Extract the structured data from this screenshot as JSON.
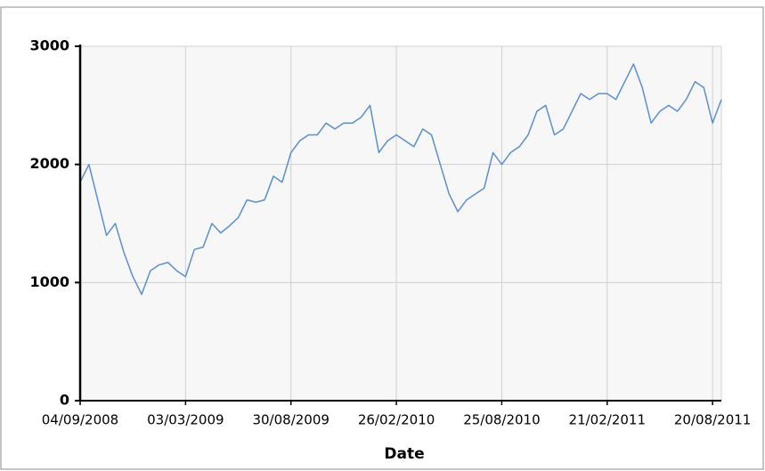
{
  "chart_data": {
    "type": "line",
    "x_label": "Date",
    "x": [
      "2008-09-04",
      "2008-09-19",
      "2008-10-04",
      "2008-10-19",
      "2008-11-03",
      "2008-11-18",
      "2008-12-03",
      "2008-12-18",
      "2009-01-02",
      "2009-01-17",
      "2009-02-01",
      "2009-02-16",
      "2009-03-03",
      "2009-03-18",
      "2009-04-02",
      "2009-04-17",
      "2009-05-02",
      "2009-05-17",
      "2009-06-01",
      "2009-06-16",
      "2009-07-01",
      "2009-07-16",
      "2009-07-31",
      "2009-08-15",
      "2009-08-30",
      "2009-09-14",
      "2009-09-29",
      "2009-10-14",
      "2009-10-29",
      "2009-11-13",
      "2009-11-28",
      "2009-12-13",
      "2009-12-28",
      "2010-01-12",
      "2010-01-27",
      "2010-02-11",
      "2010-02-26",
      "2010-03-13",
      "2010-03-28",
      "2010-04-12",
      "2010-04-27",
      "2010-05-12",
      "2010-05-27",
      "2010-06-11",
      "2010-06-26",
      "2010-07-11",
      "2010-07-26",
      "2010-08-10",
      "2010-08-25",
      "2010-09-09",
      "2010-09-24",
      "2010-10-09",
      "2010-10-24",
      "2010-11-08",
      "2010-11-23",
      "2010-12-08",
      "2010-12-23",
      "2011-01-07",
      "2011-01-22",
      "2011-02-06",
      "2011-02-21",
      "2011-03-08",
      "2011-03-23",
      "2011-04-07",
      "2011-04-22",
      "2011-05-07",
      "2011-05-22",
      "2011-06-06",
      "2011-06-21",
      "2011-07-06",
      "2011-07-21",
      "2011-08-05",
      "2011-08-20",
      "2011-09-04"
    ],
    "series": [
      {
        "color": "#5b8fcf",
        "values": [
          1850,
          2000,
          1700,
          1400,
          1500,
          1250,
          1050,
          900,
          1100,
          1150,
          1170,
          1100,
          1050,
          1280,
          1300,
          1500,
          1420,
          1480,
          1550,
          1700,
          1680,
          1700,
          1900,
          1850,
          2100,
          2200,
          2250,
          2250,
          2350,
          2300,
          2350,
          2350,
          2400,
          2500,
          2100,
          2200,
          2250,
          2200,
          2150,
          2300,
          2250,
          2000,
          1750,
          1600,
          1700,
          1750,
          1800,
          2100,
          2000,
          2100,
          2150,
          2250,
          2450,
          2500,
          2250,
          2300,
          2450,
          2600,
          2550,
          2600,
          2600,
          2550,
          2700,
          2850,
          2650,
          2350,
          2450,
          2500,
          2450,
          2550,
          2700,
          2650,
          2350,
          2550
        ]
      }
    ],
    "xlim": [
      "2008-09-04",
      "2011-09-04"
    ],
    "xticks": [
      {
        "value": "2008-09-04",
        "label": "04/09/2008"
      },
      {
        "value": "2009-03-03",
        "label": "03/03/2009"
      },
      {
        "value": "2009-08-30",
        "label": "30/08/2009"
      },
      {
        "value": "2010-02-26",
        "label": "26/02/2010"
      },
      {
        "value": "2010-08-25",
        "label": "25/08/2010"
      },
      {
        "value": "2011-02-21",
        "label": "21/02/2011"
      },
      {
        "value": "2011-08-20",
        "label": "20/08/2011"
      }
    ],
    "ylim": [
      0,
      3000
    ],
    "yticks": [
      0,
      1000,
      2000,
      3000
    ],
    "grid": true
  }
}
